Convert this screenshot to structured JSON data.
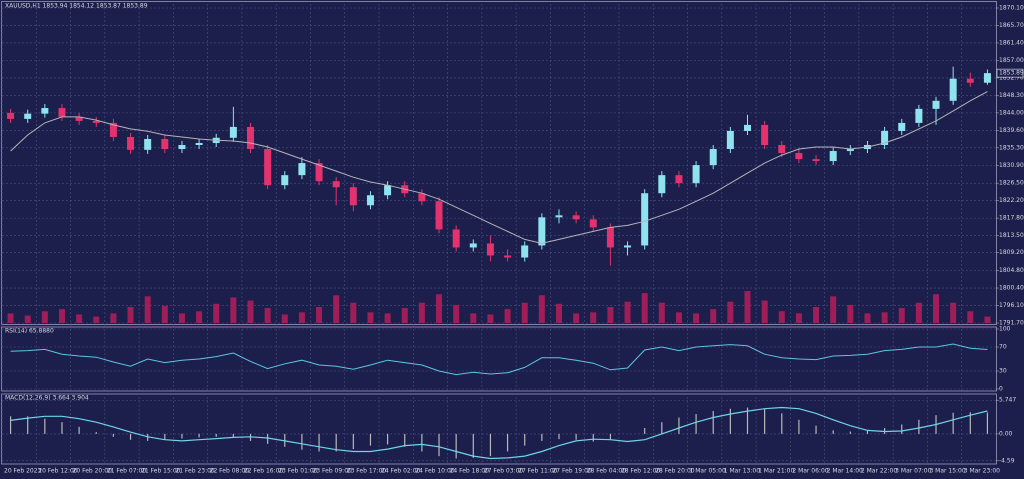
{
  "chart_data": [
    {
      "type": "candlestick",
      "title": "XAUUSD,H1  1853.94 1854.12 1853.87 1853.89",
      "up_color": "#8fe3ee",
      "down_color": "#e3326d",
      "ma_color": "#b4b4b8",
      "volume_color": "#a01e58",
      "grid": true,
      "categories": [
        "20 Feb 2023",
        null,
        "20 Feb 12:00",
        null,
        "20 Feb 20:00",
        null,
        "21 Feb 07:00",
        null,
        "21 Feb 15:00",
        null,
        "21 Feb 23:00",
        null,
        "22 Feb 08:00",
        null,
        "22 Feb 16:00",
        null,
        "23 Feb 01:00",
        null,
        "23 Feb 09:00",
        null,
        "23 Feb 17:00",
        null,
        "24 Feb 02:00",
        null,
        "24 Feb 10:00",
        null,
        "24 Feb 18:00",
        null,
        "27 Feb 03:00",
        null,
        "27 Feb 11:00",
        null,
        "27 Feb 19:00",
        null,
        "28 Feb 04:00",
        null,
        "28 Feb 12:00",
        null,
        "28 Feb 20:00",
        null,
        "1 Mar 05:00",
        null,
        "1 Mar 13:00",
        null,
        "1 Mar 21:00",
        null,
        "2 Mar 06:00",
        null,
        "2 Mar 14:00",
        null,
        "2 Mar 22:00",
        null,
        "3 Mar 07:00",
        null,
        "3 Mar 15:00",
        null,
        "3 Mar 23:00",
        null
      ],
      "open": [
        1844.0,
        1842.5,
        1843.8,
        1845.2,
        1843.0,
        1842.0,
        1841.5,
        1838.0,
        1834.8,
        1837.5,
        1835.0,
        1836.0,
        1836.5,
        1837.8,
        1840.5,
        1835.0,
        1826.0,
        1828.5,
        1831.5,
        1827.0,
        1825.5,
        1821.0,
        1823.5,
        1826.0,
        1824.0,
        1822.0,
        1815.0,
        1810.5,
        1811.5,
        1808.5,
        1808.0,
        1811.0,
        1818.0,
        1818.5,
        1817.5,
        1815.5,
        1810.5,
        1811.0,
        1824.0,
        1828.5,
        1826.5,
        1831.0,
        1835.0,
        1839.5,
        1841.0,
        1836.0,
        1834.0,
        1832.5,
        1832.0,
        1834.5,
        1835.0,
        1836.0,
        1839.5,
        1841.5,
        1845.0,
        1847.0,
        1852.5,
        1851.5
      ],
      "high": [
        1845.0,
        1844.8,
        1846.2,
        1846.2,
        1844.0,
        1843.0,
        1842.5,
        1839.0,
        1838.5,
        1838.5,
        1837.0,
        1837.5,
        1838.8,
        1845.5,
        1841.5,
        1836.0,
        1829.5,
        1833.0,
        1832.5,
        1828.0,
        1826.5,
        1824.5,
        1827.0,
        1827.0,
        1825.0,
        1823.0,
        1816.0,
        1812.5,
        1813.5,
        1810.0,
        1812.0,
        1819.0,
        1820.0,
        1819.5,
        1818.5,
        1816.5,
        1812.0,
        1825.0,
        1829.5,
        1829.5,
        1832.0,
        1836.0,
        1840.5,
        1843.5,
        1842.0,
        1837.0,
        1835.0,
        1833.5,
        1835.5,
        1836.0,
        1837.0,
        1840.5,
        1842.5,
        1846.0,
        1848.0,
        1855.5,
        1854.0,
        1854.8
      ],
      "low": [
        1841.5,
        1841.5,
        1842.8,
        1842.0,
        1841.0,
        1840.5,
        1837.0,
        1833.8,
        1833.8,
        1834.0,
        1834.0,
        1835.0,
        1835.5,
        1836.8,
        1834.0,
        1825.0,
        1825.0,
        1827.5,
        1826.0,
        1821.0,
        1819.5,
        1820.0,
        1822.5,
        1823.0,
        1821.0,
        1814.0,
        1809.5,
        1809.5,
        1807.0,
        1807.0,
        1807.0,
        1810.0,
        1816.5,
        1816.5,
        1814.5,
        1806.0,
        1808.5,
        1810.0,
        1823.0,
        1825.5,
        1825.5,
        1830.0,
        1834.0,
        1838.5,
        1835.0,
        1833.0,
        1831.5,
        1831.0,
        1831.0,
        1833.5,
        1834.0,
        1835.0,
        1838.5,
        1840.5,
        1841.0,
        1846.0,
        1850.5,
        1851.0
      ],
      "close": [
        1842.5,
        1843.8,
        1845.2,
        1843.0,
        1842.0,
        1841.5,
        1838.0,
        1834.8,
        1837.5,
        1835.0,
        1836.0,
        1836.5,
        1837.8,
        1840.5,
        1835.0,
        1826.0,
        1828.5,
        1831.5,
        1827.0,
        1825.5,
        1821.0,
        1823.5,
        1826.0,
        1824.0,
        1822.0,
        1815.0,
        1810.5,
        1811.5,
        1808.5,
        1808.0,
        1811.0,
        1818.0,
        1818.5,
        1817.5,
        1815.5,
        1810.5,
        1811.0,
        1824.0,
        1828.5,
        1826.5,
        1831.0,
        1835.0,
        1839.5,
        1841.0,
        1836.0,
        1834.0,
        1832.5,
        1832.0,
        1834.5,
        1835.0,
        1836.0,
        1839.5,
        1841.5,
        1845.0,
        1847.0,
        1852.5,
        1851.5,
        1853.89
      ],
      "ma": [
        1834.5,
        1838.5,
        1841.5,
        1843.0,
        1843.0,
        1842.2,
        1841.0,
        1840.0,
        1839.4,
        1838.5,
        1838.0,
        1837.5,
        1837.2,
        1837.0,
        1836.5,
        1835.5,
        1834.0,
        1832.5,
        1831.0,
        1829.5,
        1828.0,
        1826.8,
        1826.0,
        1825.0,
        1824.0,
        1822.5,
        1820.5,
        1818.5,
        1816.5,
        1814.5,
        1812.5,
        1811.5,
        1812.5,
        1813.5,
        1814.5,
        1815.5,
        1816.0,
        1817.0,
        1818.5,
        1820.0,
        1822.0,
        1824.0,
        1826.5,
        1829.0,
        1831.5,
        1833.5,
        1835.0,
        1835.5,
        1835.5,
        1835.0,
        1835.5,
        1836.5,
        1838.0,
        1840.0,
        1842.0,
        1844.5,
        1847.0,
        1849.3
      ],
      "volume": [
        900,
        700,
        1100,
        1300,
        800,
        600,
        900,
        1500,
        2500,
        1600,
        900,
        1100,
        1800,
        2400,
        2100,
        1400,
        800,
        1000,
        1500,
        2600,
        1900,
        1000,
        900,
        1400,
        1900,
        2700,
        1700,
        900,
        800,
        1300,
        1900,
        2600,
        1800,
        900,
        1000,
        1500,
        2000,
        2800,
        1900,
        1000,
        900,
        1300,
        2000,
        3000,
        2100,
        1100,
        900,
        1500,
        2500,
        1700,
        900,
        1000,
        1400,
        1900,
        2700,
        1900,
        1100,
        600
      ],
      "ylim": [
        1791.7,
        1870.1
      ],
      "yticks": [
        {
          "value": 1870.1,
          "label": "1870.10"
        },
        {
          "value": 1865.7,
          "label": "1865.70"
        },
        {
          "value": 1861.4,
          "label": "1861.40"
        },
        {
          "value": 1857,
          "label": "1857.00"
        },
        {
          "value": 1852.7,
          "label": "1852.70"
        },
        {
          "value": 1848.3,
          "label": "1848.30"
        },
        {
          "value": 1844,
          "label": "1844.00"
        },
        {
          "value": 1839.6,
          "label": "1839.60"
        },
        {
          "value": 1835.3,
          "label": "1835.30"
        },
        {
          "value": 1830.9,
          "label": "1830.90"
        },
        {
          "value": 1826.5,
          "label": "1826.50"
        },
        {
          "value": 1822.2,
          "label": "1822.20"
        },
        {
          "value": 1817.8,
          "label": "1817.80"
        },
        {
          "value": 1813.5,
          "label": "1813.50"
        },
        {
          "value": 1809.2,
          "label": "1809.20"
        },
        {
          "value": 1804.8,
          "label": "1804.80"
        },
        {
          "value": 1800.4,
          "label": "1800.40"
        },
        {
          "value": 1796.1,
          "label": "1796.10"
        },
        {
          "value": 1791.7,
          "label": "1791.70"
        }
      ]
    },
    {
      "type": "line",
      "title": "RSI(14) 65.8880",
      "color": "#5cc6e0",
      "values": [
        63,
        64,
        66,
        58,
        55,
        53,
        45,
        38,
        50,
        44,
        48,
        50,
        54,
        60,
        46,
        34,
        42,
        48,
        40,
        38,
        33,
        40,
        48,
        44,
        40,
        30,
        24,
        28,
        25,
        27,
        36,
        52,
        52,
        48,
        43,
        32,
        35,
        65,
        70,
        64,
        70,
        72,
        74,
        72,
        58,
        52,
        50,
        49,
        55,
        56,
        58,
        64,
        66,
        70,
        70,
        75,
        68,
        65.888
      ],
      "ylim": [
        0,
        100
      ],
      "yticks": [
        100,
        70,
        30,
        0
      ]
    },
    {
      "type": "macd",
      "title": "MACD(12,26,9) 3.664 3.904",
      "histogram_color": "#b8b8bc",
      "signal_color": "#6fd3ea",
      "histogram": [
        3.0,
        3.0,
        2.6,
        2.0,
        1.2,
        0.3,
        -0.5,
        -1.0,
        -1.2,
        -1.0,
        -0.8,
        -0.6,
        -0.5,
        -0.7,
        -1.2,
        -1.7,
        -2.2,
        -2.7,
        -3.0,
        -3.0,
        -2.6,
        -2.0,
        -1.8,
        -2.2,
        -3.0,
        -3.8,
        -4.2,
        -4.1,
        -3.8,
        -3.0,
        -2.0,
        -1.2,
        -0.9,
        -1.0,
        -1.3,
        -1.0,
        0.0,
        1.0,
        2.0,
        2.8,
        3.4,
        3.9,
        4.3,
        4.5,
        4.3,
        3.5,
        2.4,
        1.4,
        0.6,
        0.4,
        0.5,
        1.0,
        1.6,
        2.4,
        3.2,
        3.6,
        3.7,
        3.664
      ],
      "signal": [
        2.3,
        2.7,
        3.0,
        3.0,
        2.6,
        2.0,
        1.2,
        0.3,
        -0.5,
        -1.0,
        -1.2,
        -1.0,
        -0.8,
        -0.6,
        -0.5,
        -0.7,
        -1.2,
        -1.7,
        -2.2,
        -2.7,
        -3.0,
        -3.0,
        -2.6,
        -2.0,
        -1.8,
        -2.2,
        -3.0,
        -3.8,
        -4.2,
        -4.1,
        -3.8,
        -3.0,
        -2.0,
        -1.2,
        -0.9,
        -1.0,
        -1.3,
        -1.0,
        0.0,
        1.0,
        2.0,
        2.8,
        3.4,
        3.9,
        4.3,
        4.5,
        4.3,
        3.5,
        2.4,
        1.4,
        0.6,
        0.4,
        0.5,
        1.0,
        1.6,
        2.4,
        3.2,
        3.904
      ],
      "ylim": [
        -4.8,
        6.3
      ],
      "yticks": [
        5.747,
        {
          "value": 0,
          "label": "0.00"
        },
        -4.59
      ]
    }
  ]
}
